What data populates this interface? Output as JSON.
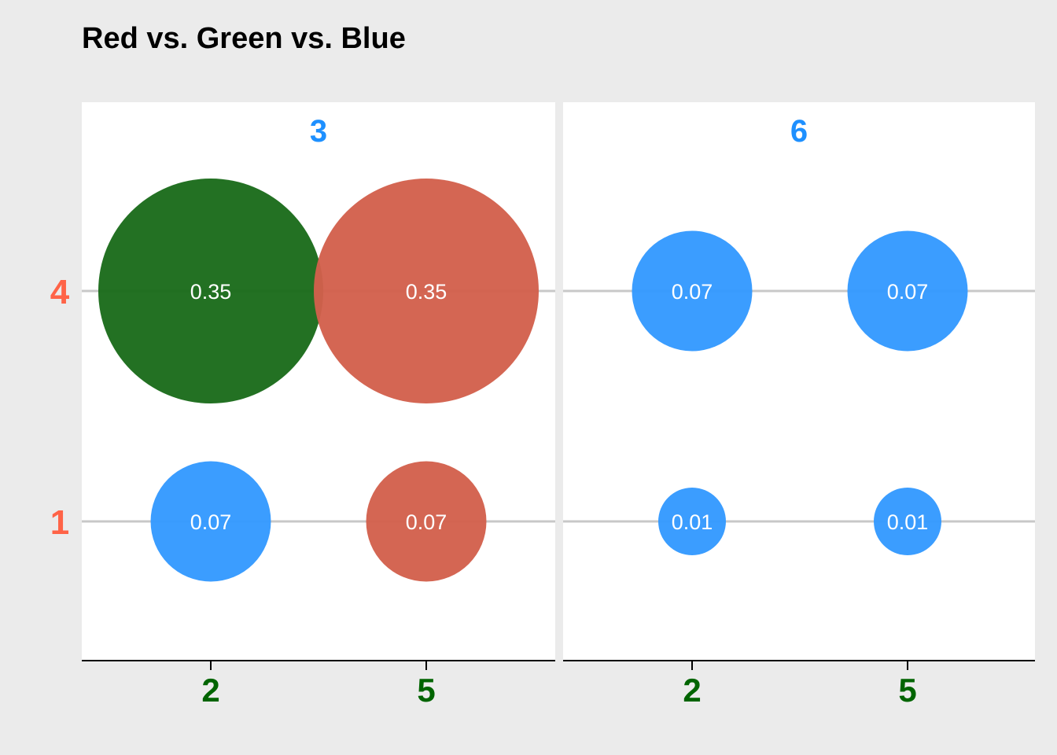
{
  "chart_data": {
    "type": "scatter",
    "title": "Red vs. Green vs. Blue",
    "xlabel": "",
    "ylabel": "",
    "facets": [
      "3",
      "6"
    ],
    "x_categories": [
      "2",
      "5"
    ],
    "y_categories": [
      "1",
      "4"
    ],
    "size_range": [
      0.01,
      0.35
    ],
    "grid": "horizontal",
    "legend": "none",
    "points": [
      {
        "facet": "3",
        "x": "2",
        "y": "4",
        "value": 0.35,
        "label": "0.35",
        "color": "#1a6b1a"
      },
      {
        "facet": "3",
        "x": "5",
        "y": "4",
        "value": 0.35,
        "label": "0.35",
        "color": "#d2604c"
      },
      {
        "facet": "3",
        "x": "2",
        "y": "1",
        "value": 0.07,
        "label": "0.07",
        "color": "#3399ff"
      },
      {
        "facet": "3",
        "x": "5",
        "y": "1",
        "value": 0.07,
        "label": "0.07",
        "color": "#d2604c"
      },
      {
        "facet": "6",
        "x": "2",
        "y": "4",
        "value": 0.07,
        "label": "0.07",
        "color": "#3399ff"
      },
      {
        "facet": "6",
        "x": "5",
        "y": "4",
        "value": 0.07,
        "label": "0.07",
        "color": "#3399ff"
      },
      {
        "facet": "6",
        "x": "2",
        "y": "1",
        "value": 0.01,
        "label": "0.01",
        "color": "#3399ff"
      },
      {
        "facet": "6",
        "x": "5",
        "y": "1",
        "value": 0.01,
        "label": "0.01",
        "color": "#3399ff"
      }
    ]
  },
  "colors": {
    "background": "#ebebeb",
    "panel": "#ffffff",
    "gridline": "#c8c8c8",
    "facet_label": "#1e90ff",
    "x_tick_label": "#006400",
    "y_tick_label": "#ff6347",
    "point_label": "#ffffff"
  }
}
